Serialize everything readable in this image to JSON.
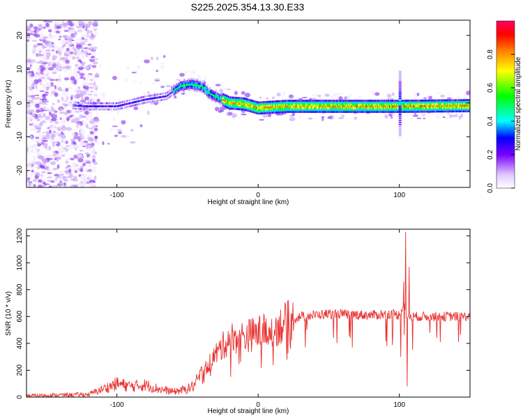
{
  "title": "S225.2025.354.13.30.E33",
  "chart_data": [
    {
      "type": "heatmap",
      "xlabel": "Height of straight line (km)",
      "ylabel": "Frequency (Hz)",
      "xlim": [
        -164,
        150
      ],
      "ylim": [
        -25,
        24.5
      ],
      "xticks": [
        -100,
        0,
        100
      ],
      "yticks": [
        -20,
        -10,
        0,
        10,
        20
      ],
      "ridge": [
        [
          -164,
          0
        ],
        [
          -120,
          -1
        ],
        [
          -100,
          -1
        ],
        [
          -80,
          1
        ],
        [
          -65,
          2
        ],
        [
          -55,
          5
        ],
        [
          -48,
          5.5
        ],
        [
          -40,
          5
        ],
        [
          -35,
          3
        ],
        [
          -28,
          1.5
        ],
        [
          -20,
          0
        ],
        [
          -10,
          -0.3
        ],
        [
          0,
          -1.5
        ],
        [
          20,
          -1
        ],
        [
          60,
          -1
        ],
        [
          100,
          -1
        ],
        [
          150,
          -0.8
        ]
      ],
      "colorbar": {
        "label": "Normalized spectral amplitude",
        "range": [
          0,
          1
        ],
        "ticks": [
          "0.0",
          "0.2",
          "0.4",
          "0.6",
          "0.8"
        ]
      }
    },
    {
      "type": "line",
      "xlabel": "Height of straight line (km)",
      "ylabel": "SNR (10 * v/v)",
      "xlim": [
        -164,
        150
      ],
      "ylim": [
        0,
        1250
      ],
      "xticks": [
        -100,
        0,
        100
      ],
      "yticks": [
        0,
        200,
        400,
        600,
        800,
        1000,
        1200
      ],
      "color": "#e8302e",
      "trend": [
        [
          -164,
          10
        ],
        [
          -120,
          20
        ],
        [
          -110,
          60
        ],
        [
          -100,
          100
        ],
        [
          -90,
          80
        ],
        [
          -80,
          90
        ],
        [
          -70,
          60
        ],
        [
          -60,
          40
        ],
        [
          -50,
          60
        ],
        [
          -45,
          90
        ],
        [
          -40,
          170
        ],
        [
          -30,
          320
        ],
        [
          -20,
          440
        ],
        [
          -10,
          450
        ],
        [
          0,
          480
        ],
        [
          10,
          500
        ],
        [
          20,
          560
        ],
        [
          30,
          600
        ],
        [
          50,
          620
        ],
        [
          80,
          610
        ],
        [
          95,
          620
        ],
        [
          100,
          610
        ],
        [
          103,
          700
        ],
        [
          105,
          600
        ],
        [
          110,
          600
        ],
        [
          150,
          600
        ]
      ],
      "peaks": [
        [
          104.5,
          1230
        ],
        [
          103,
          860
        ],
        [
          107,
          970
        ],
        [
          105.5,
          80
        ],
        [
          101,
          300
        ]
      ]
    }
  ]
}
